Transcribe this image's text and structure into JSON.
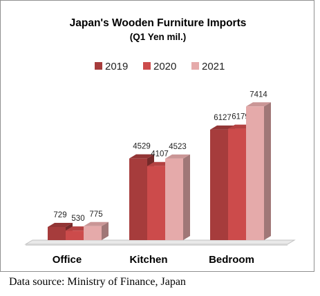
{
  "chart_data": {
    "type": "bar",
    "title": "Japan's Wooden Furniture Imports",
    "subtitle": "(Q1 Yen mil.)",
    "categories": [
      "Office",
      "Kitchen",
      "Bedroom"
    ],
    "series": [
      {
        "name": "2019",
        "values": [
          729,
          4529,
          6127
        ],
        "color": "#a63c3c"
      },
      {
        "name": "2020",
        "values": [
          530,
          4107,
          6179
        ],
        "color": "#cc4b4b"
      },
      {
        "name": "2021",
        "values": [
          775,
          4523,
          7414
        ],
        "color": "#e5aaaa"
      }
    ],
    "ylim": [
      0,
      8000
    ],
    "legend": "top",
    "grid": false,
    "data_labels": true,
    "style": "3d"
  },
  "source": "Data source: Ministry of Finance, Japan"
}
